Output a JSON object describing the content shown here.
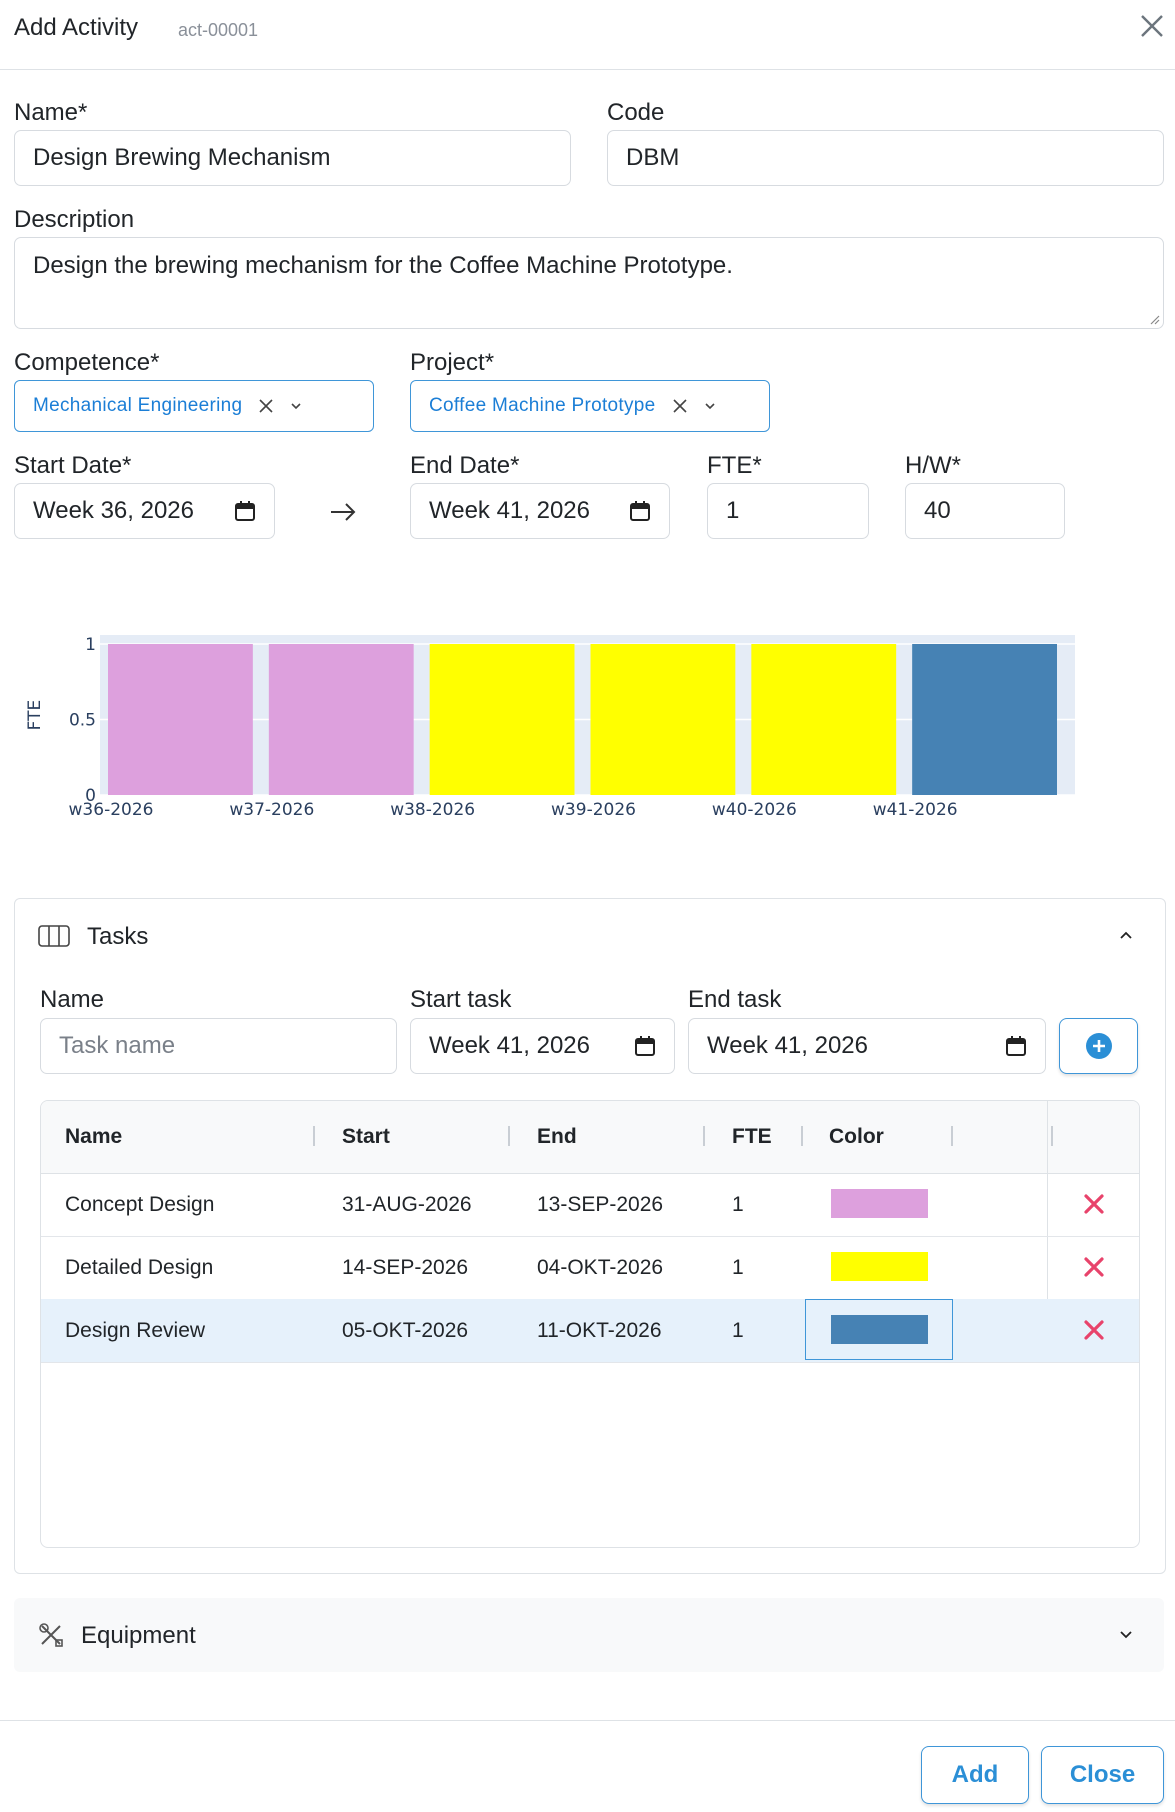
{
  "dialog": {
    "title": "Add Activity",
    "id": "act-00001"
  },
  "form": {
    "name_label": "Name*",
    "name_value": "Design Brewing Mechanism",
    "code_label": "Code",
    "code_value": "DBM",
    "description_label": "Description",
    "description_value": "Design the brewing mechanism for the Coffee Machine Prototype.",
    "competence_label": "Competence*",
    "competence_value": "Mechanical Engineering",
    "project_label": "Project*",
    "project_value": "Coffee Machine Prototype",
    "start_label": "Start Date*",
    "start_value": "Week 36, 2026",
    "end_label": "End Date*",
    "end_value": "Week 41, 2026",
    "fte_label": "FTE*",
    "fte_value": "1",
    "hw_label": "H/W*",
    "hw_value": "40"
  },
  "chart_data": {
    "type": "bar",
    "categories": [
      "w36-2026",
      "w37-2026",
      "w38-2026",
      "w39-2026",
      "w40-2026",
      "w41-2026"
    ],
    "values": [
      1,
      1,
      1,
      1,
      1,
      1
    ],
    "colors": [
      "#dda0dd",
      "#dda0dd",
      "#ffff00",
      "#ffff00",
      "#ffff00",
      "#4682b4"
    ],
    "ylabel": "FTE",
    "ylim": [
      0,
      1
    ],
    "yticks": [
      "0",
      "0.5",
      "1"
    ],
    "grid": true
  },
  "tasks": {
    "title": "Tasks",
    "name_label": "Name",
    "name_placeholder": "Task name",
    "start_label": "Start task",
    "start_value": "Week 41, 2026",
    "end_label": "End task",
    "end_value": "Week 41, 2026",
    "columns": [
      "Name",
      "Start",
      "End",
      "FTE",
      "Color"
    ],
    "rows": [
      {
        "name": "Concept Design",
        "start": "31-AUG-2026",
        "end": "13-SEP-2026",
        "fte": "1",
        "color": "#dda0dd"
      },
      {
        "name": "Detailed Design",
        "start": "14-SEP-2026",
        "end": "04-OKT-2026",
        "fte": "1",
        "color": "#ffff00"
      },
      {
        "name": "Design Review",
        "start": "05-OKT-2026",
        "end": "11-OKT-2026",
        "fte": "1",
        "color": "#4682b4"
      }
    ]
  },
  "equipment": {
    "title": "Equipment"
  },
  "footer": {
    "add_label": "Add",
    "close_label": "Close"
  }
}
